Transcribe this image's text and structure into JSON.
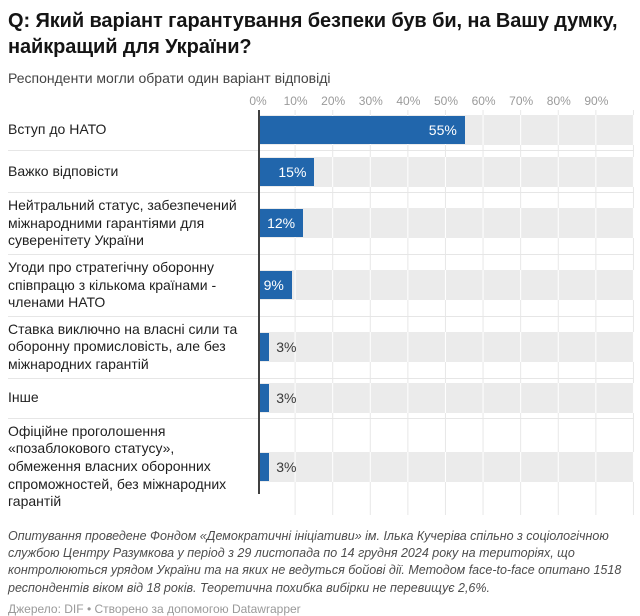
{
  "header": {
    "title": "Q: Який варіант гарантування безпеки був би, на Вашу думку, найкращий для України?",
    "subtitle": "Респонденти могли обрати один варіант відповіді"
  },
  "chart_data": {
    "type": "bar",
    "orientation": "horizontal",
    "title": "Q: Який варіант гарантування безпеки був би, на Вашу думку, найкращий для України?",
    "subtitle": "Респонденти могли обрати один варіант відповіді",
    "categories": [
      "Вступ до НАТО",
      "Важко відповісти",
      "Нейтральний статус, забезпечений міжнародними гарантіями для суверенітету України",
      "Угоди про стратегічну оборонну співпрацю з кількома країнами - членами НАТО",
      "Ставка виключно на власні сили та оборонну промисловість, але без міжнародних гарантій",
      "Інше",
      "Офіційне проголошення «позаблокового статусу», обмеження власних оборонних спроможностей, без міжнародних гарантій"
    ],
    "values": [
      55,
      15,
      12,
      9,
      3,
      3,
      3
    ],
    "value_labels": [
      "55%",
      "15%",
      "12%",
      "9%",
      "3%",
      "3%",
      "3%"
    ],
    "x_ticks": [
      "0%",
      "10%",
      "20%",
      "30%",
      "40%",
      "50%",
      "60%",
      "70%",
      "80%",
      "90%"
    ],
    "xlim": [
      0,
      100
    ],
    "grid": true,
    "legend": "none",
    "bar_color": "#2166ac",
    "row_band_color": "#ebebeb"
  },
  "footer": {
    "notes": "Опитування проведене Фондом «Демократичні ініціативи» ім. Ілька Кучеріва спільно з соціологічною службою Центру Разумкова у період з 29 листопада по 14 грудня 2024 року на територіях, що контролюються урядом України та на яких не ведуться бойові дії. Методом face-to-face опитано 1518 респондентів віком від 18 років. Теоретична похибка вибірки не перевищує 2,6%.",
    "source_label": "Джерело:",
    "source": "DIF",
    "separator": "•",
    "credit": "Створено за допомогою Datawrapper"
  }
}
